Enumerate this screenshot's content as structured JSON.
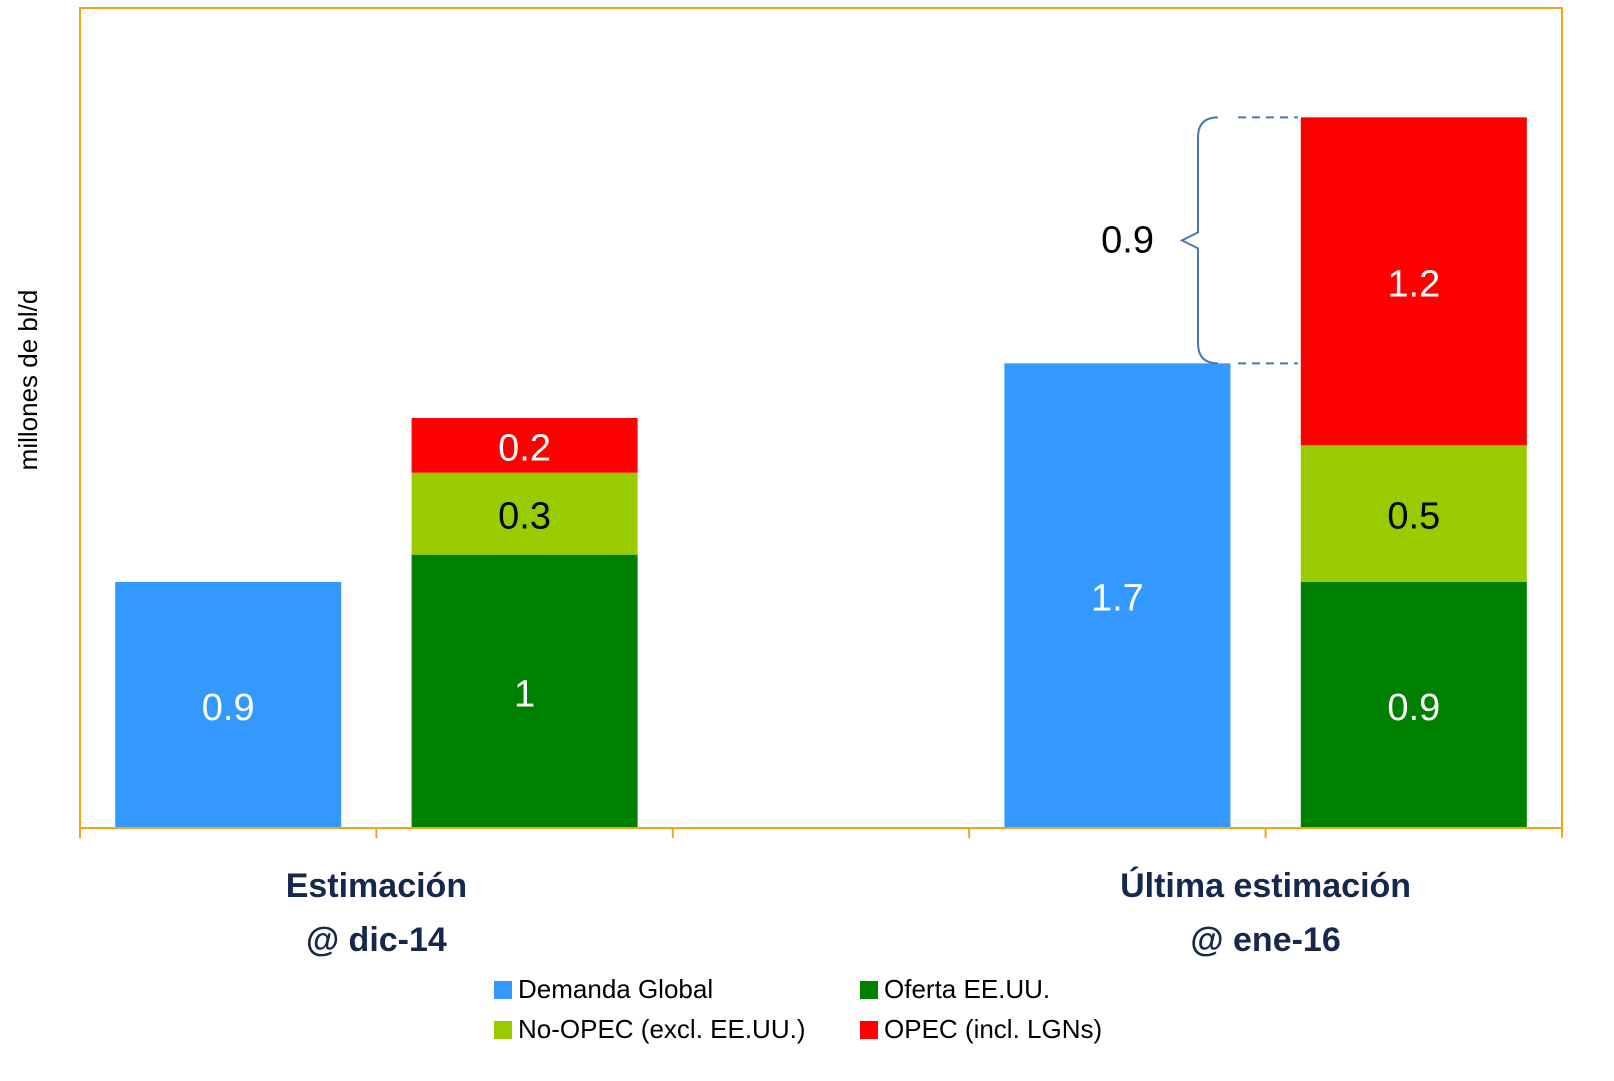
{
  "chart_data": {
    "type": "bar",
    "stacked": true,
    "y_axis_label": "millones de bl/d",
    "categories": [
      [
        "Estimación",
        "@ dic-14"
      ],
      [
        "Última estimación",
        "@ ene-16"
      ]
    ],
    "series": [
      {
        "name": "Demanda Global",
        "color": "#3399ff",
        "label_color": "#ffffff",
        "stack": 0,
        "values": [
          0.9,
          1.7
        ]
      },
      {
        "name": "Oferta EE.UU.",
        "color": "#008000",
        "label_color": "#ffffff",
        "stack": 1,
        "values": [
          1.0,
          0.9
        ]
      },
      {
        "name": "No-OPEC (excl. EE.UU.)",
        "color": "#99cc00",
        "label_color": "#000000",
        "stack": 1,
        "values": [
          0.3,
          0.5
        ]
      },
      {
        "name": "OPEC (incl. LGNs)",
        "color": "#ff0000",
        "label_color": "#ffffff",
        "stack": 1,
        "values": [
          0.2,
          1.2
        ]
      }
    ],
    "annotations": [
      {
        "value": 0.9
      }
    ],
    "ylim": [
      0,
      3
    ],
    "grid": false,
    "legend": "bottom"
  }
}
